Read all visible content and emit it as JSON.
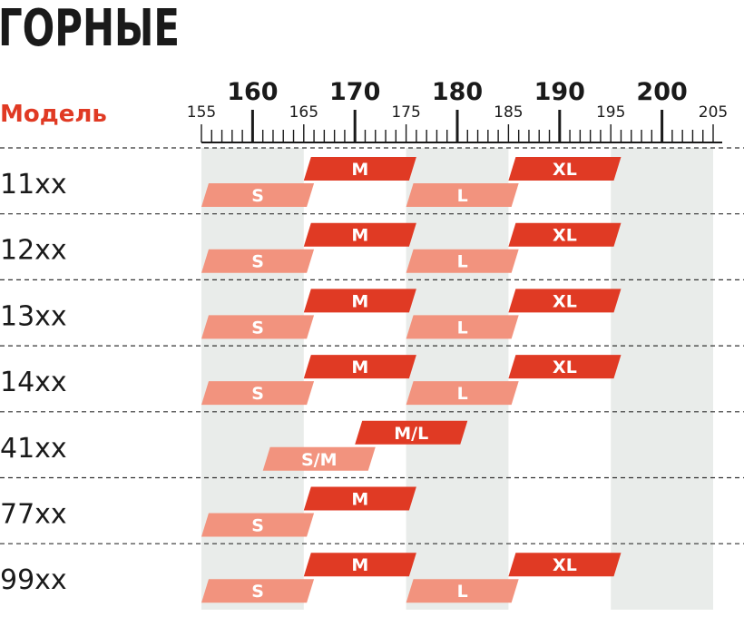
{
  "chart_data": {
    "type": "bar",
    "title": "ГОРНЫЕ",
    "row_header": "Модель",
    "axis": {
      "min": 155,
      "max": 205,
      "major_ticks": [
        160,
        170,
        180,
        190,
        200
      ],
      "minor_labeled_ticks": [
        155,
        165,
        175,
        185,
        195,
        205
      ]
    },
    "colors": {
      "primary": "#e03a24",
      "secondary": "#f2937e",
      "band": "#e9ecea",
      "title": "#1a1a1a",
      "accent_text": "#e03a24"
    },
    "shaded_bands": [
      [
        155,
        165
      ],
      [
        175,
        185
      ],
      [
        195,
        205
      ]
    ],
    "models": [
      {
        "name": "11xx",
        "sizes": [
          {
            "label": "S",
            "min": 155,
            "max": 166,
            "tier": "lower"
          },
          {
            "label": "M",
            "min": 165,
            "max": 176,
            "tier": "upper"
          },
          {
            "label": "L",
            "min": 175,
            "max": 186,
            "tier": "lower"
          },
          {
            "label": "XL",
            "min": 185,
            "max": 196,
            "tier": "upper"
          }
        ]
      },
      {
        "name": "12xx",
        "sizes": [
          {
            "label": "S",
            "min": 155,
            "max": 166,
            "tier": "lower"
          },
          {
            "label": "M",
            "min": 165,
            "max": 176,
            "tier": "upper"
          },
          {
            "label": "L",
            "min": 175,
            "max": 186,
            "tier": "lower"
          },
          {
            "label": "XL",
            "min": 185,
            "max": 196,
            "tier": "upper"
          }
        ]
      },
      {
        "name": "13xx",
        "sizes": [
          {
            "label": "S",
            "min": 155,
            "max": 166,
            "tier": "lower"
          },
          {
            "label": "M",
            "min": 165,
            "max": 176,
            "tier": "upper"
          },
          {
            "label": "L",
            "min": 175,
            "max": 186,
            "tier": "lower"
          },
          {
            "label": "XL",
            "min": 185,
            "max": 196,
            "tier": "upper"
          }
        ]
      },
      {
        "name": "14xx",
        "sizes": [
          {
            "label": "S",
            "min": 155,
            "max": 166,
            "tier": "lower"
          },
          {
            "label": "M",
            "min": 165,
            "max": 176,
            "tier": "upper"
          },
          {
            "label": "L",
            "min": 175,
            "max": 186,
            "tier": "lower"
          },
          {
            "label": "XL",
            "min": 185,
            "max": 196,
            "tier": "upper"
          }
        ]
      },
      {
        "name": "41xx",
        "sizes": [
          {
            "label": "S/M",
            "min": 161,
            "max": 172,
            "tier": "lower"
          },
          {
            "label": "M/L",
            "min": 170,
            "max": 181,
            "tier": "upper"
          }
        ]
      },
      {
        "name": "77xx",
        "sizes": [
          {
            "label": "S",
            "min": 155,
            "max": 166,
            "tier": "lower"
          },
          {
            "label": "M",
            "min": 165,
            "max": 176,
            "tier": "upper"
          }
        ]
      },
      {
        "name": "99xx",
        "sizes": [
          {
            "label": "S",
            "min": 155,
            "max": 166,
            "tier": "lower"
          },
          {
            "label": "M",
            "min": 165,
            "max": 176,
            "tier": "upper"
          },
          {
            "label": "L",
            "min": 175,
            "max": 186,
            "tier": "lower"
          },
          {
            "label": "XL",
            "min": 185,
            "max": 196,
            "tier": "upper"
          }
        ]
      }
    ]
  }
}
